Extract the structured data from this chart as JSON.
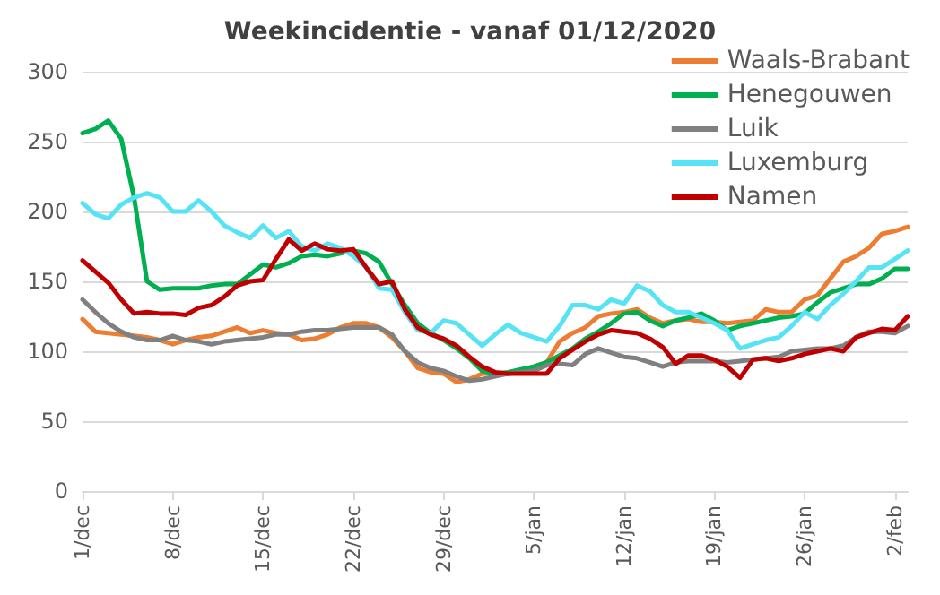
{
  "chart_data": {
    "type": "line",
    "title": "Weekincidentie - vanaf 01/12/2020",
    "categories": [
      "1/dec",
      null,
      null,
      null,
      null,
      null,
      null,
      "8/dec",
      null,
      null,
      null,
      null,
      null,
      null,
      "15/dec",
      null,
      null,
      null,
      null,
      null,
      null,
      "22/dec",
      null,
      null,
      null,
      null,
      null,
      null,
      "29/dec",
      null,
      null,
      null,
      null,
      null,
      null,
      "5/jan",
      null,
      null,
      null,
      null,
      null,
      null,
      "12/jan",
      null,
      null,
      null,
      null,
      null,
      null,
      "19/jan",
      null,
      null,
      null,
      null,
      null,
      null,
      "26/jan",
      null,
      null,
      null,
      null,
      null,
      null,
      "2/feb",
      null
    ],
    "series": [
      {
        "name": "Waals-Brabant",
        "color": "#ed7d31",
        "values": [
          123,
          114,
          113,
          112,
          111,
          110,
          108,
          105,
          108,
          110,
          111,
          114,
          117,
          113,
          115,
          113,
          112,
          108,
          109,
          112,
          117,
          120,
          120,
          117,
          110,
          100,
          88,
          85,
          84,
          78,
          80,
          84,
          84,
          84,
          86,
          89,
          92,
          107,
          113,
          117,
          125,
          127,
          128,
          130,
          124,
          120,
          122,
          123,
          121,
          121,
          120,
          121,
          122,
          130,
          128,
          128,
          137,
          140,
          152,
          164,
          168,
          174,
          184,
          186,
          189
        ]
      },
      {
        "name": "Henegouwen",
        "color": "#00b050",
        "values": [
          256,
          259,
          265,
          252,
          210,
          150,
          144,
          145,
          145,
          145,
          147,
          148,
          148,
          155,
          162,
          160,
          163,
          168,
          169,
          168,
          170,
          172,
          170,
          164,
          148,
          133,
          120,
          113,
          108,
          102,
          95,
          86,
          84,
          85,
          87,
          89,
          92,
          97,
          102,
          109,
          114,
          120,
          127,
          128,
          122,
          118,
          122,
          124,
          127,
          122,
          115,
          118,
          120,
          122,
          124,
          125,
          127,
          135,
          142,
          145,
          148,
          148,
          152,
          159,
          159
        ]
      },
      {
        "name": "Luik",
        "color": "#808080",
        "values": [
          137,
          128,
          120,
          114,
          110,
          108,
          108,
          111,
          108,
          107,
          105,
          107,
          108,
          109,
          110,
          112,
          112,
          114,
          115,
          115,
          116,
          117,
          117,
          117,
          112,
          100,
          92,
          88,
          86,
          82,
          79,
          80,
          82,
          84,
          85,
          86,
          90,
          91,
          90,
          98,
          102,
          99,
          96,
          95,
          92,
          89,
          92,
          93,
          93,
          93,
          92,
          93,
          94,
          95,
          96,
          100,
          101,
          102,
          102,
          104,
          110,
          114,
          114,
          113,
          118
        ]
      },
      {
        "name": "Luxemburg",
        "color": "#55e3f5",
        "values": [
          206,
          198,
          195,
          205,
          210,
          213,
          210,
          200,
          200,
          208,
          200,
          190,
          185,
          181,
          190,
          181,
          186,
          175,
          172,
          177,
          174,
          168,
          160,
          145,
          144,
          128,
          115,
          113,
          122,
          120,
          112,
          104,
          112,
          119,
          113,
          110,
          107,
          118,
          133,
          133,
          130,
          137,
          134,
          147,
          143,
          133,
          128,
          128,
          124,
          120,
          115,
          102,
          105,
          108,
          110,
          118,
          128,
          123,
          133,
          141,
          150,
          160,
          160,
          166,
          172
        ]
      },
      {
        "name": "Namen",
        "color": "#c00000",
        "values": [
          165,
          157,
          149,
          137,
          127,
          128,
          127,
          127,
          126,
          131,
          133,
          139,
          147,
          150,
          151,
          166,
          180,
          172,
          177,
          173,
          172,
          173,
          160,
          148,
          150,
          130,
          117,
          112,
          109,
          104,
          96,
          89,
          85,
          84,
          84,
          84,
          84,
          95,
          101,
          107,
          112,
          115,
          114,
          113,
          109,
          103,
          91,
          97,
          97,
          94,
          89,
          81,
          94,
          95,
          93,
          95,
          98,
          100,
          102,
          100,
          110,
          113,
          116,
          115,
          125
        ]
      }
    ],
    "ylim": [
      0,
      300
    ],
    "yticks": [
      0,
      50,
      100,
      150,
      200,
      250,
      300
    ],
    "grid": "y",
    "legend": "top right",
    "marker": "none",
    "line_style": "solid"
  }
}
